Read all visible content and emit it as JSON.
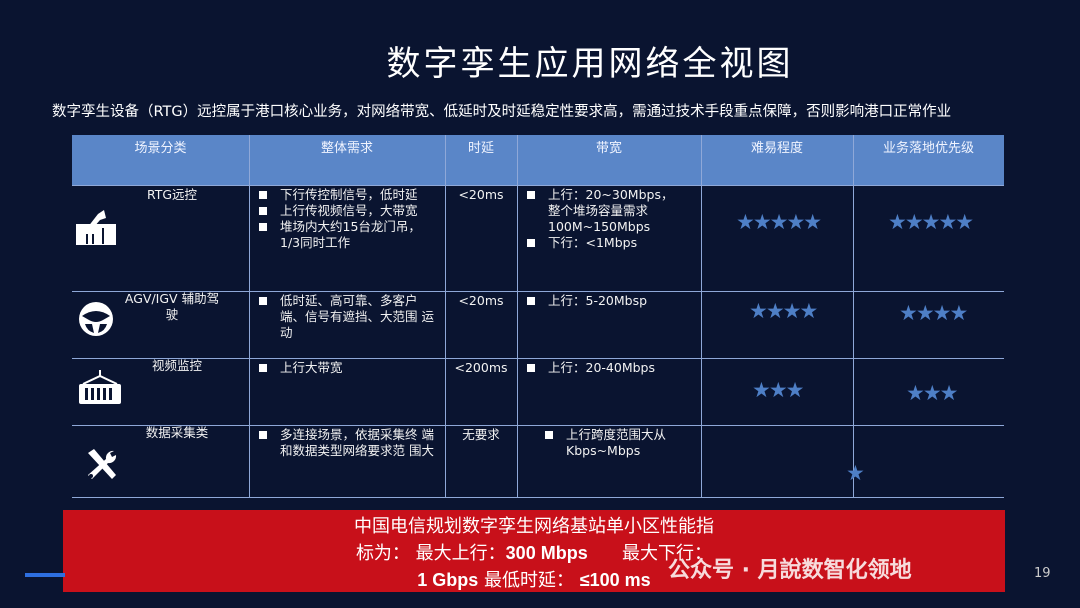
{
  "title": "数字孪生应用网络全视图",
  "intro": "数字孪生设备（RTG）远控属于港口核心业务，对网络带宽、低延时及时延稳定性要求高，需通过技术手段重点保障，否则影响港口正常作业",
  "table": {
    "headers": [
      "场景分类",
      "整体需求",
      "时延",
      "带宽",
      "难易程度",
      "业务落地优先级"
    ],
    "rows": [
      {
        "scene": "RTG远控",
        "icon": "crane-icon",
        "needs": [
          "下行传控制信号，低时延",
          "上行传视频信号，大带宽",
          "堆场内大约15台龙门吊，1/3同时工作"
        ],
        "latency": "<20ms",
        "bandwidth": [
          "上行：20~30Mbps，整个堆场容量需求100M~150Mbps",
          "下行：<1Mbps"
        ],
        "difficulty": 5,
        "priority": 5
      },
      {
        "scene": "AGV/IGV 辅助驾驶",
        "icon": "steering-wheel-icon",
        "needs": [
          "低时延、高可靠、多客户 端、信号有遮挡、大范围 运动"
        ],
        "latency": "<20ms",
        "bandwidth": [
          "上行：5-20Mbsp"
        ],
        "difficulty": 4,
        "priority": 4
      },
      {
        "scene": "视频监控",
        "icon": "container-icon",
        "needs": [
          "上行大带宽"
        ],
        "latency": "<200ms",
        "bandwidth": [
          "上行：20-40Mbps"
        ],
        "difficulty": 3,
        "priority": 3
      },
      {
        "scene": "数据采集类",
        "icon": "tools-icon",
        "needs": [
          "多连接场景，依据采集终 端和数据类型网络要求范 围大"
        ],
        "latency": "无要求",
        "bandwidth": [
          "上行跨度范围大从Kbps~Mbps"
        ],
        "difficulty": 1,
        "priority": null
      }
    ]
  },
  "footer": {
    "line1": "中国电信规划数字孪生网络基站单小区性能指",
    "line2a": "标为：  最大上行：",
    "line2b": "300 Mbps",
    "line2c": "最大下行：",
    "line3a": "1 Gbps",
    "line3b": " 最低时延：  ",
    "line3c": "≤100 ms"
  },
  "watermark": "公众号 · 月說数智化领地",
  "page_number": "19",
  "colors": {
    "background": "#0a1430",
    "header": "#5a86c8",
    "stars": "#4e7fc6",
    "banner": "#c8101a"
  }
}
